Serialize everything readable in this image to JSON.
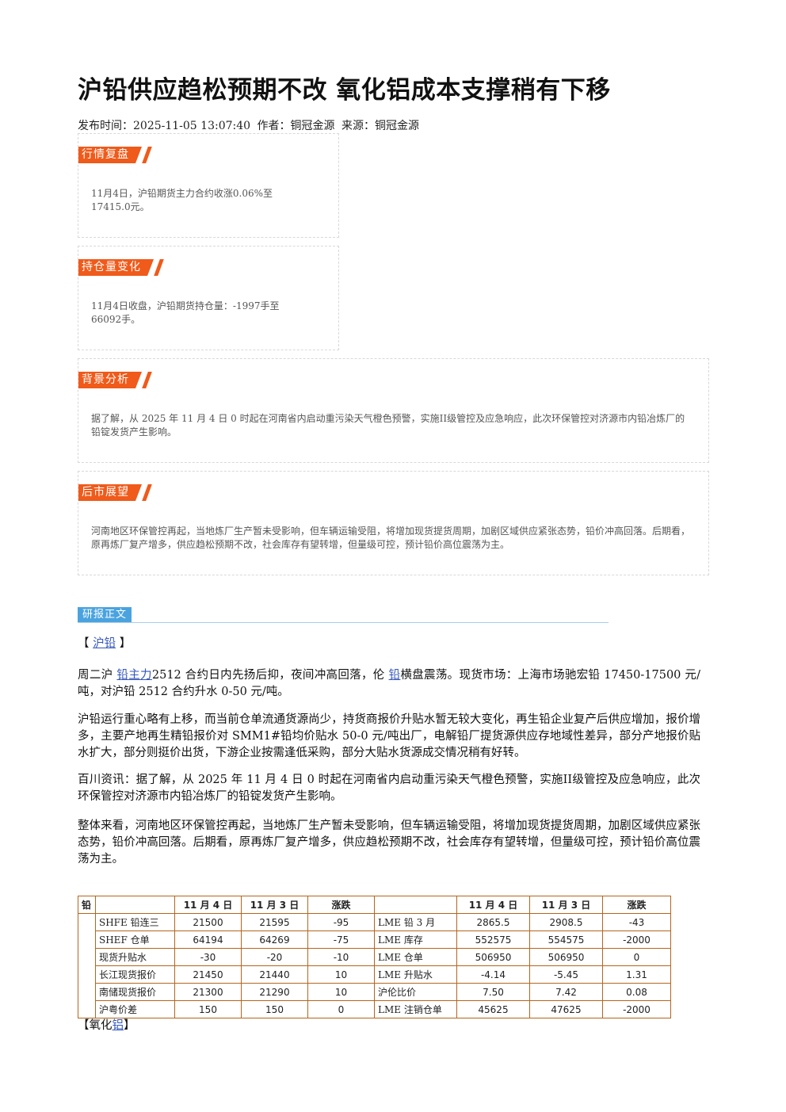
{
  "title": "沪铅供应趋松预期不改 氧化铝成本支撑稍有下移",
  "meta": {
    "publish_label": "发布时间：",
    "publish_time": "2025-11-05 13:07:40",
    "author_label": "作者：",
    "author": "铜冠金源",
    "source_label": "来源：",
    "source": "铜冠金源"
  },
  "boxes": [
    {
      "tag": "行情复盘",
      "text": "11月4日，沪铅期货主力合约收涨0.06%至17415.0元。"
    },
    {
      "tag": "持仓量变化",
      "text": "11月4日收盘，沪铅期货持仓量：-1997手至66092手。"
    },
    {
      "tag": "背景分析",
      "text": "据了解，从 2025 年 11 月 4 日 0 时起在河南省内启动重污染天气橙色预警，实施II级管控及应急响应，此次环保管控对济源市内铅冶炼厂的铅锭发货产生影响。"
    },
    {
      "tag": "后市展望",
      "text": "河南地区环保管控再起，当地炼厂生产暂未受影响，但车辆运输受阻，将增加现货提货周期，加剧区域供应紧张态势，铅价冲高回落。后期看，原再炼厂复产增多，供应趋松预期不改，社会库存有望转增，但量级可控，预计铅价高位震荡为主。"
    }
  ],
  "report": {
    "tag": "研报正文",
    "section1_open": "【",
    "section1_link": "沪铅",
    "section1_close": "】",
    "p1_a": "周二沪",
    "p1_link1": "铅主力",
    "p1_b": "2512 合约日内先扬后抑，夜间冲高回落，伦",
    "p1_link2": "铅",
    "p1_c": "横盘震荡。现货市场：上海市场驰宏铅 17450-17500 元/吨，对沪铅 2512 合约升水 0-50 元/吨。",
    "p2": "沪铅运行重心略有上移，而当前仓单流通货源尚少，持货商报价升贴水暂无较大变化，再生铅企业复产后供应增加，报价增多，主要产地再生精铅报价对 SMM1#铅均价贴水 50-0 元/吨出厂，电解铅厂提货源供应存地域性差异，部分产地报价贴水扩大，部分则挺价出货，下游企业按需逢低采购，部分大贴水货源成交情况稍有好转。",
    "p3": "百川资讯：据了解，从 2025 年 11 月 4 日 0 时起在河南省内启动重污染天气橙色预警，实施II级管控及应急响应，此次环保管控对济源市内铅冶炼厂的铅锭发货产生影响。",
    "p4": "整体来看，河南地区环保管控再起，当地炼厂生产暂未受影响，但车辆运输受阻，将增加现货提货周期，加剧区域供应紧张态势，铅价冲高回落。后期看，原再炼厂复产增多，供应趋松预期不改，社会库存有望转增，但量级可控，预计铅价高位震荡为主。",
    "section2_open": "【氧化",
    "section2_link": "铝",
    "section2_close": "】"
  },
  "table": {
    "corner": "铅",
    "headers": [
      "11 月 4 日",
      "11 月 3 日",
      "涨跌",
      "11 月 4 日",
      "11 月 3 日",
      "涨跌"
    ],
    "rows": [
      {
        "l_name": "SHFE 铅连三",
        "l1": "21500",
        "l2": "21595",
        "l3": "-95",
        "r_name": "LME 铅 3 月",
        "r1": "2865.5",
        "r2": "2908.5",
        "r3": "-43"
      },
      {
        "l_name": "SHEF 仓单",
        "l1": "64194",
        "l2": "64269",
        "l3": "-75",
        "r_name": "LME 库存",
        "r1": "552575",
        "r2": "554575",
        "r3": "-2000"
      },
      {
        "l_name": "现货升贴水",
        "l1": "-30",
        "l2": "-20",
        "l3": "-10",
        "r_name": "LME 仓单",
        "r1": "506950",
        "r2": "506950",
        "r3": "0"
      },
      {
        "l_name": "长江现货报价",
        "l1": "21450",
        "l2": "21440",
        "l3": "10",
        "r_name": "LME 升贴水",
        "r1": "-4.14",
        "r2": "-5.45",
        "r3": "1.31"
      },
      {
        "l_name": "南储现货报价",
        "l1": "21300",
        "l2": "21290",
        "l3": "10",
        "r_name": "沪伦比价",
        "r1": "7.50",
        "r2": "7.42",
        "r3": "0.08"
      },
      {
        "l_name": "沪粤价差",
        "l1": "150",
        "l2": "150",
        "l3": "0",
        "r_name": "LME 注销仓单",
        "r1": "45625",
        "r2": "47625",
        "r3": "-2000"
      }
    ]
  }
}
